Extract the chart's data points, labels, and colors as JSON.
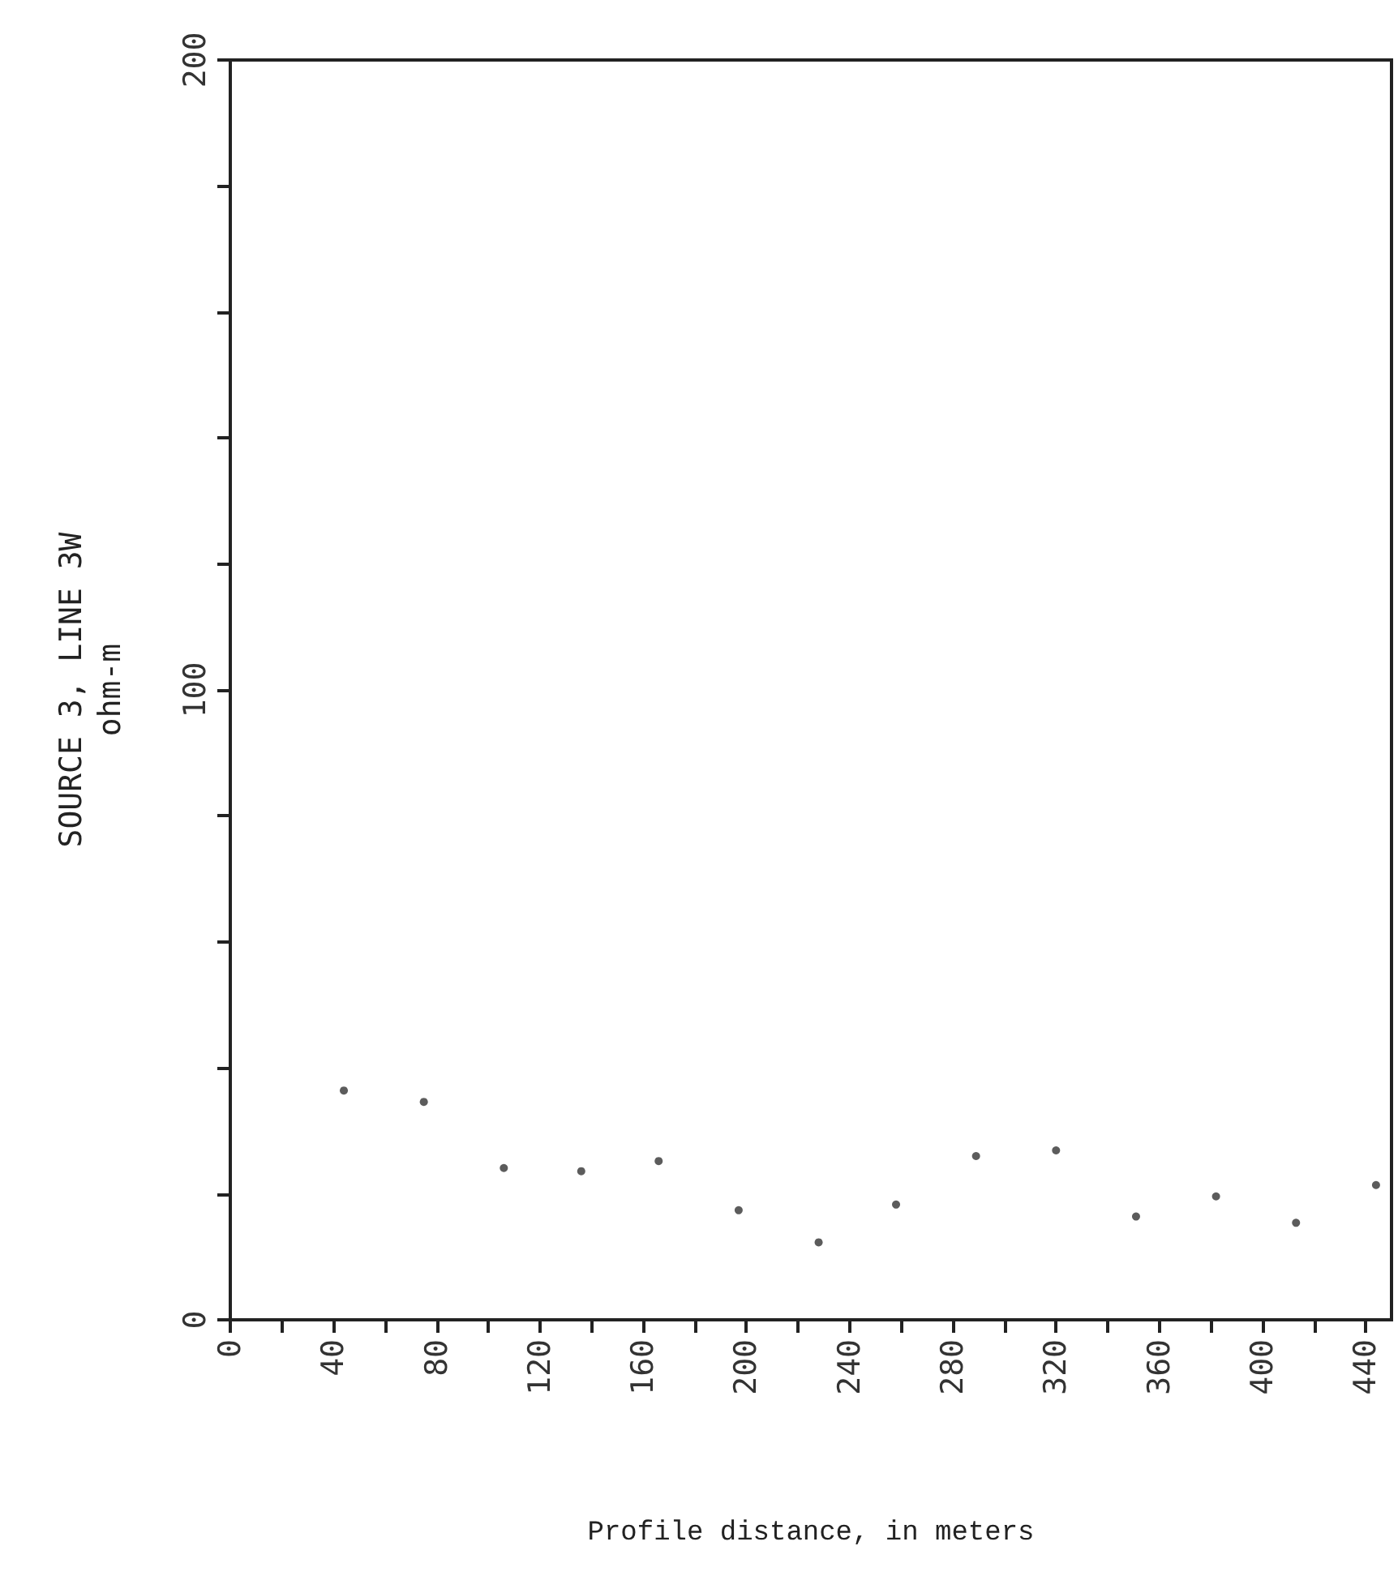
{
  "chart_data": {
    "type": "scatter",
    "ylabel": "SOURCE 3, LINE 3W\nohm-m",
    "xlabel": "Profile distance, in meters",
    "x": [
      44,
      75,
      106,
      136,
      166,
      197,
      228,
      258,
      289,
      320,
      351,
      382,
      413,
      444
    ],
    "series": [
      {
        "color": "#333333",
        "values": [
          36.4,
          34.6,
          24.1,
          23.6,
          25.2,
          17.4,
          12.3,
          18.3,
          26.0,
          26.9,
          16.4,
          19.6,
          15.4,
          21.4
        ]
      }
    ],
    "xlim": [
      0,
      450
    ],
    "ylim": [
      0,
      200
    ],
    "xticks": [
      0,
      {
        "value": 20,
        "label": null
      },
      40,
      {
        "value": 60,
        "label": null
      },
      80,
      {
        "value": 100,
        "label": null
      },
      120,
      {
        "value": 140,
        "label": null
      },
      160,
      {
        "value": 180,
        "label": null
      },
      200,
      {
        "value": 220,
        "label": null
      },
      240,
      {
        "value": 260,
        "label": null
      },
      280,
      {
        "value": 300,
        "label": null
      },
      320,
      {
        "value": 340,
        "label": null
      },
      360,
      {
        "value": 380,
        "label": null
      },
      400,
      {
        "value": 420,
        "label": null
      },
      440
    ],
    "yticks": [
      0,
      {
        "value": 20,
        "label": null
      },
      {
        "value": 40,
        "label": null
      },
      {
        "value": 60,
        "label": null
      },
      {
        "value": 80,
        "label": null
      },
      100,
      {
        "value": 120,
        "label": null
      },
      {
        "value": 140,
        "label": null
      },
      {
        "value": 160,
        "label": null
      },
      {
        "value": 180,
        "label": null
      },
      200
    ],
    "grid": false,
    "marker": "circle"
  }
}
